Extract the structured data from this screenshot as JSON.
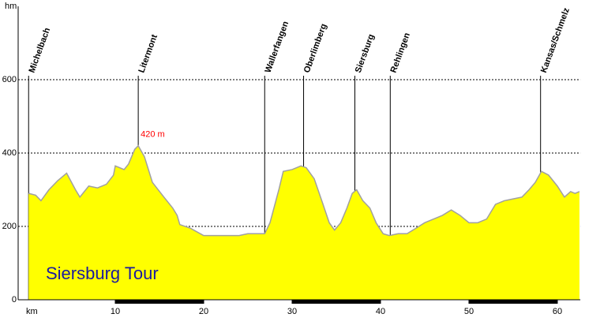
{
  "chart_data": {
    "type": "area",
    "title": "Siersburg Tour",
    "x_label": "km",
    "y_label": "hm",
    "x": [
      0.2,
      1,
      1.6,
      2.5,
      3.5,
      4.5,
      5.5,
      6,
      7,
      8,
      9,
      9.8,
      10,
      11,
      11.5,
      12.2,
      12.6,
      13.3,
      14.2,
      15.5,
      16.5,
      17,
      17.3,
      18.5,
      20,
      22,
      24,
      25,
      26,
      26.9,
      27.5,
      28.5,
      29,
      30,
      31,
      31.6,
      32.5,
      33.5,
      34.2,
      34.8,
      35.5,
      36.2,
      36.8,
      37.3,
      38,
      38.8,
      39.5,
      40.3,
      41,
      42,
      43,
      44,
      45,
      46,
      47,
      48,
      49,
      50,
      51,
      52,
      53,
      54,
      55,
      56,
      56.8,
      57.5,
      58.2,
      59,
      60,
      60.8,
      61.5,
      62,
      62.5
    ],
    "values": [
      290,
      285,
      270,
      300,
      325,
      345,
      300,
      280,
      310,
      305,
      315,
      340,
      365,
      355,
      370,
      410,
      420,
      390,
      320,
      280,
      250,
      230,
      205,
      195,
      175,
      175,
      175,
      180,
      180,
      180,
      210,
      300,
      350,
      355,
      365,
      360,
      330,
      260,
      210,
      190,
      210,
      250,
      290,
      300,
      270,
      250,
      210,
      180,
      175,
      180,
      180,
      195,
      210,
      220,
      230,
      245,
      230,
      210,
      210,
      220,
      260,
      270,
      275,
      280,
      300,
      320,
      350,
      340,
      310,
      280,
      295,
      290,
      295
    ],
    "value_labels": [
      null,
      null,
      null,
      null,
      null,
      null,
      null,
      null,
      null,
      null,
      null,
      null,
      null,
      null,
      null,
      null,
      "420 m",
      null,
      null,
      null,
      null,
      null,
      null,
      null,
      null,
      null,
      null,
      null,
      null,
      null,
      null,
      null,
      null,
      null,
      null,
      null,
      null,
      null,
      null,
      null,
      null,
      null,
      null,
      null,
      null,
      null,
      null,
      null,
      null,
      null,
      null,
      null,
      null,
      null,
      null,
      null,
      null,
      null,
      null,
      null,
      null,
      null,
      null,
      null,
      null,
      null,
      null,
      null,
      null,
      null,
      null,
      null,
      null
    ],
    "color": "#ffff00",
    "line_color": "#a0a0a0",
    "label_color": "#ff0000",
    "title_color": "#1a1aa0",
    "markers": [
      {
        "name": "Michelbach",
        "x": 0.2
      },
      {
        "name": "Litermont",
        "x": 12.6
      },
      {
        "name": "Wallerfangen",
        "x": 26.9
      },
      {
        "name": "Oberlimberg",
        "x": 31.3
      },
      {
        "name": "Siersburg",
        "x": 37.1
      },
      {
        "name": "Rehlingen",
        "x": 41.1
      },
      {
        "name": "Kansas/Schmelz",
        "x": 58.1
      }
    ],
    "xlim": [
      0,
      62.6
    ],
    "ylim": [
      0,
      800
    ],
    "xticks": [
      10,
      20,
      30,
      40,
      50,
      60
    ],
    "yticks": [
      0,
      200,
      400,
      600
    ],
    "grid": true
  }
}
